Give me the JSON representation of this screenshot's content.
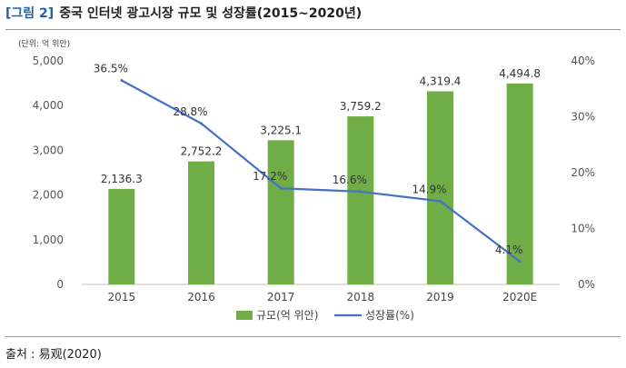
{
  "figure": {
    "label": "[그림 2]",
    "title": "중국 인터넷 광고시장 규모 및 성장률(2015~2020년)"
  },
  "source": "출처 : 易观(2020)",
  "chart_data": {
    "type": "bar",
    "unit_note": "(단위: 억 위안)",
    "categories": [
      "2015",
      "2016",
      "2017",
      "2018",
      "2019",
      "2020E"
    ],
    "series": [
      {
        "name": "규모(억 위안)",
        "type": "bar",
        "axis": "left",
        "color": "#70ad47",
        "values": [
          2136.3,
          2752.2,
          3225.1,
          3759.2,
          4319.4,
          4494.8
        ],
        "labels": [
          "2,136.3",
          "2,752.2",
          "3,225.1",
          "3,759.2",
          "4,319.4",
          "4,494.8"
        ]
      },
      {
        "name": "성장률(%)",
        "type": "line",
        "axis": "right",
        "color": "#4472c4",
        "values": [
          36.5,
          28.8,
          17.2,
          16.6,
          14.9,
          4.1
        ],
        "labels": [
          "36.5%",
          "28.8%",
          "17.2%",
          "16.6%",
          "14.9%",
          "4.1%"
        ]
      }
    ],
    "y_left": {
      "min": 0,
      "max": 5000,
      "ticks": [
        0,
        1000,
        2000,
        3000,
        4000,
        5000
      ],
      "tick_labels": [
        "0",
        "1,000",
        "2,000",
        "3,000",
        "4,000",
        "5,000"
      ]
    },
    "y_right": {
      "min": 0,
      "max": 40,
      "ticks": [
        0,
        10,
        20,
        30,
        40
      ],
      "tick_labels": [
        "0%",
        "10%",
        "20%",
        "30%",
        "40%"
      ]
    },
    "grid": false,
    "legend_position": "bottom"
  }
}
